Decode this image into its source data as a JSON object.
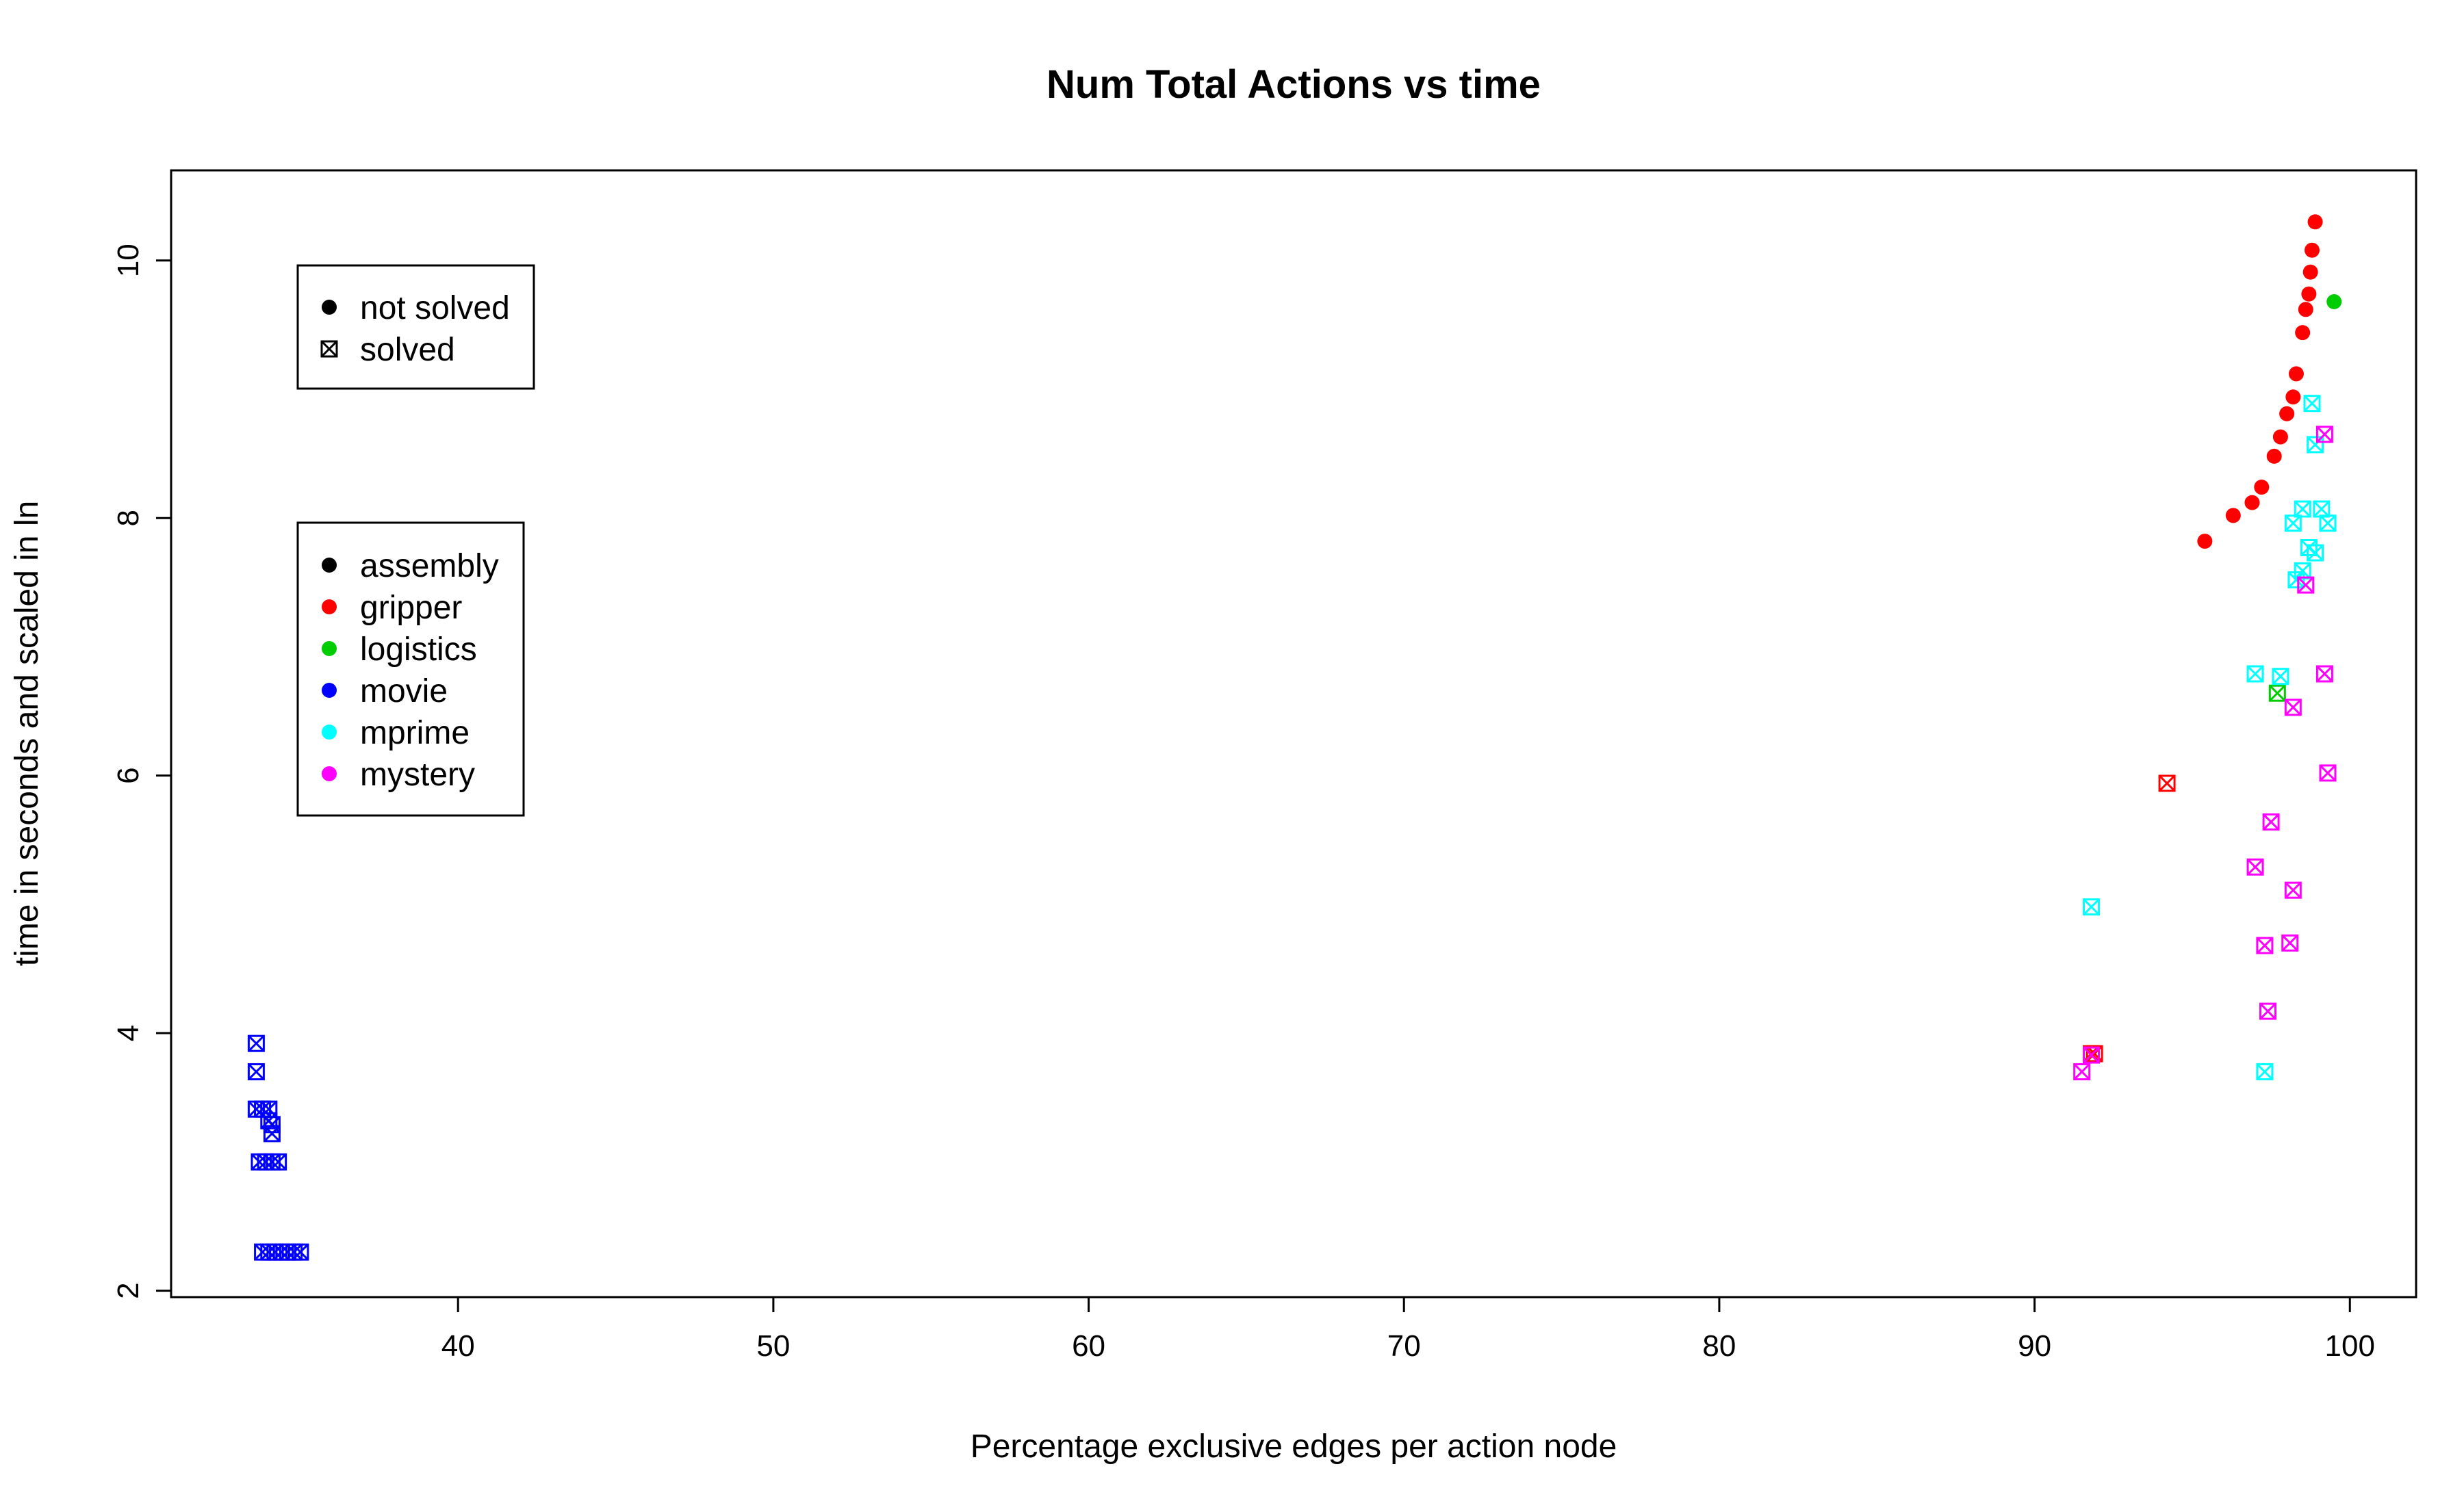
{
  "chart_data": {
    "type": "scatter",
    "title": "Num Total Actions vs time",
    "xlabel": "Percentage exclusive edges per action node",
    "ylabel": "time in seconds and scaled in ln",
    "xlim": [
      30.9,
      102.1
    ],
    "ylim": [
      1.95,
      10.7
    ],
    "xticks": [
      40,
      50,
      60,
      70,
      80,
      90,
      100
    ],
    "yticks": [
      2,
      4,
      6,
      8,
      10
    ],
    "grid": false,
    "legends": [
      {
        "placement": "top-left",
        "entries": [
          {
            "label": "not solved",
            "marker": "dot",
            "color": "#000000"
          },
          {
            "label": "solved",
            "marker": "circle-x",
            "color": "#000000"
          }
        ]
      },
      {
        "placement": "left",
        "entries": [
          {
            "label": "assembly",
            "marker": "dot",
            "color": "#000000"
          },
          {
            "label": "gripper",
            "marker": "dot",
            "color": "#ff0000"
          },
          {
            "label": "logistics",
            "marker": "dot",
            "color": "#00cd00"
          },
          {
            "label": "movie",
            "marker": "dot",
            "color": "#0000ff"
          },
          {
            "label": "mprime",
            "marker": "dot",
            "color": "#00ffff"
          },
          {
            "label": "mystery",
            "marker": "dot",
            "color": "#ff00ff"
          }
        ]
      }
    ],
    "series": [
      {
        "name": "gripper",
        "color": "#ff0000",
        "not_solved": [
          [
            95.4,
            7.82
          ],
          [
            96.3,
            8.02
          ],
          [
            96.9,
            8.12
          ],
          [
            97.2,
            8.24
          ],
          [
            97.6,
            8.48
          ],
          [
            97.8,
            8.63
          ],
          [
            98.0,
            8.81
          ],
          [
            98.2,
            8.94
          ],
          [
            98.3,
            9.12
          ],
          [
            98.5,
            9.44
          ],
          [
            98.6,
            9.62
          ],
          [
            98.7,
            9.74
          ],
          [
            98.75,
            9.91
          ],
          [
            98.8,
            10.08
          ],
          [
            98.9,
            10.3
          ]
        ],
        "solved": [
          [
            94.2,
            5.94
          ],
          [
            91.8,
            3.84
          ],
          [
            91.9,
            3.84
          ]
        ]
      },
      {
        "name": "logistics",
        "color": "#00cd00",
        "not_solved": [
          [
            99.5,
            9.68
          ]
        ],
        "solved": [
          [
            97.7,
            6.64
          ]
        ]
      },
      {
        "name": "movie",
        "color": "#0000ff",
        "not_solved": [],
        "solved": [
          [
            33.6,
            3.92
          ],
          [
            33.6,
            3.7
          ],
          [
            33.6,
            3.41
          ],
          [
            33.8,
            3.41
          ],
          [
            34.0,
            3.41
          ],
          [
            34.0,
            3.32
          ],
          [
            34.1,
            3.29
          ],
          [
            34.1,
            3.22
          ],
          [
            33.7,
            3.0
          ],
          [
            33.9,
            3.0
          ],
          [
            34.1,
            3.0
          ],
          [
            34.3,
            3.0
          ],
          [
            33.8,
            2.3
          ],
          [
            34.0,
            2.3
          ],
          [
            34.2,
            2.3
          ],
          [
            34.4,
            2.3
          ],
          [
            34.6,
            2.3
          ],
          [
            34.8,
            2.3
          ],
          [
            35.0,
            2.3
          ]
        ]
      },
      {
        "name": "mprime",
        "color": "#00ffff",
        "not_solved": [],
        "solved": [
          [
            98.8,
            8.89
          ],
          [
            98.9,
            8.57
          ],
          [
            98.5,
            8.07
          ],
          [
            99.1,
            8.07
          ],
          [
            98.2,
            7.96
          ],
          [
            99.3,
            7.96
          ],
          [
            98.7,
            7.77
          ],
          [
            98.9,
            7.73
          ],
          [
            98.5,
            7.59
          ],
          [
            98.3,
            7.52
          ],
          [
            97.0,
            6.79
          ],
          [
            97.8,
            6.77
          ],
          [
            91.8,
            4.98
          ],
          [
            97.3,
            3.7
          ]
        ]
      },
      {
        "name": "mystery",
        "color": "#ff00ff",
        "not_solved": [],
        "solved": [
          [
            99.2,
            8.65
          ],
          [
            98.6,
            7.48
          ],
          [
            99.2,
            6.79
          ],
          [
            98.2,
            6.53
          ],
          [
            99.3,
            6.02
          ],
          [
            97.5,
            5.64
          ],
          [
            97.0,
            5.29
          ],
          [
            98.2,
            5.11
          ],
          [
            97.3,
            4.68
          ],
          [
            98.1,
            4.7
          ],
          [
            97.4,
            4.17
          ],
          [
            91.5,
            3.7
          ],
          [
            91.8,
            3.83
          ]
        ]
      }
    ]
  }
}
